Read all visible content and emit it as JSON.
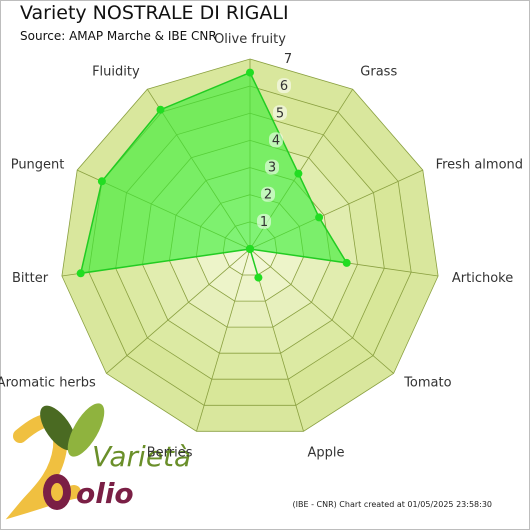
{
  "title": "Variety NOSTRALE DI RIGALI",
  "subtitle": "Source: AMAP Marche & IBE CNR",
  "credit": "(IBE - CNR) Chart created at 01/05/2025 23:58:30",
  "logo": {
    "text_top": "Varietà",
    "text_bottom": "olio"
  },
  "colors": {
    "grid_fill_outer": "#d2e38c",
    "grid_fill_inner": "#f2f7d8",
    "grid_line": "#8aa040",
    "series_fill": "#33ee33",
    "series_stroke": "#22cc22",
    "point": "#22dd22"
  },
  "chart_data": {
    "type": "radar",
    "categories": [
      "Olive fruity",
      "Grass",
      "Fresh almond",
      "Artichoke",
      "Tomato",
      "Apple",
      "Berries",
      "Aromatic herbs",
      "Bitter",
      "Pungent",
      "Fluidity"
    ],
    "rlim": [
      0,
      7
    ],
    "rticks": [
      1,
      2,
      3,
      4,
      5,
      6,
      7
    ],
    "grid": true,
    "series": [
      {
        "values": [
          6.5,
          3.3,
          2.8,
          3.6,
          0.0,
          1.1,
          0.0,
          0.0,
          6.3,
          6.0,
          6.1
        ]
      }
    ]
  }
}
